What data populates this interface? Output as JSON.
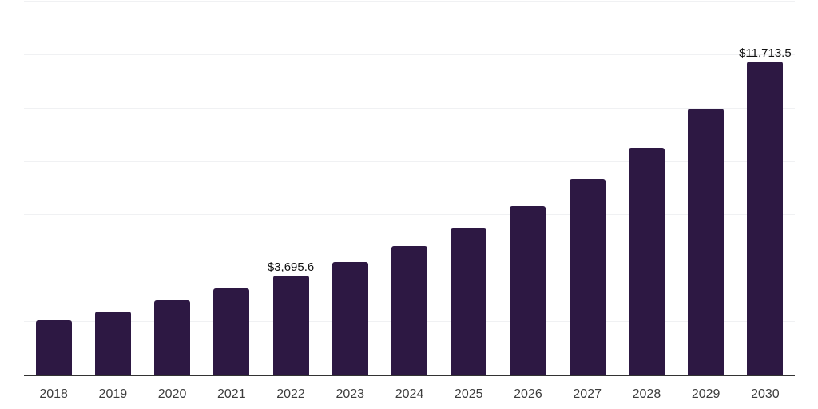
{
  "chart_data": {
    "type": "bar",
    "title": "",
    "xlabel": "",
    "ylabel": "",
    "categories": [
      "2018",
      "2019",
      "2020",
      "2021",
      "2022",
      "2023",
      "2024",
      "2025",
      "2026",
      "2027",
      "2028",
      "2029",
      "2030"
    ],
    "values": [
      2030,
      2360,
      2790,
      3240,
      3695.6,
      4210,
      4810,
      5460,
      6300,
      7340,
      8510,
      9970,
      11713.5
    ],
    "annotations": [
      {
        "category": "2022",
        "index": 4,
        "text": "$3,695.6"
      },
      {
        "category": "2030",
        "index": 12,
        "text": "$11,713.5"
      }
    ],
    "ylim": [
      0,
      14000
    ],
    "gridline_step": 2000,
    "grid": true,
    "legend": "none",
    "bar_color": "#2d1843",
    "axis_color": "#333333",
    "gridline_color": "#f0f1f3",
    "tick_color": "#3d3d3d",
    "value_label_color": "#111111"
  }
}
